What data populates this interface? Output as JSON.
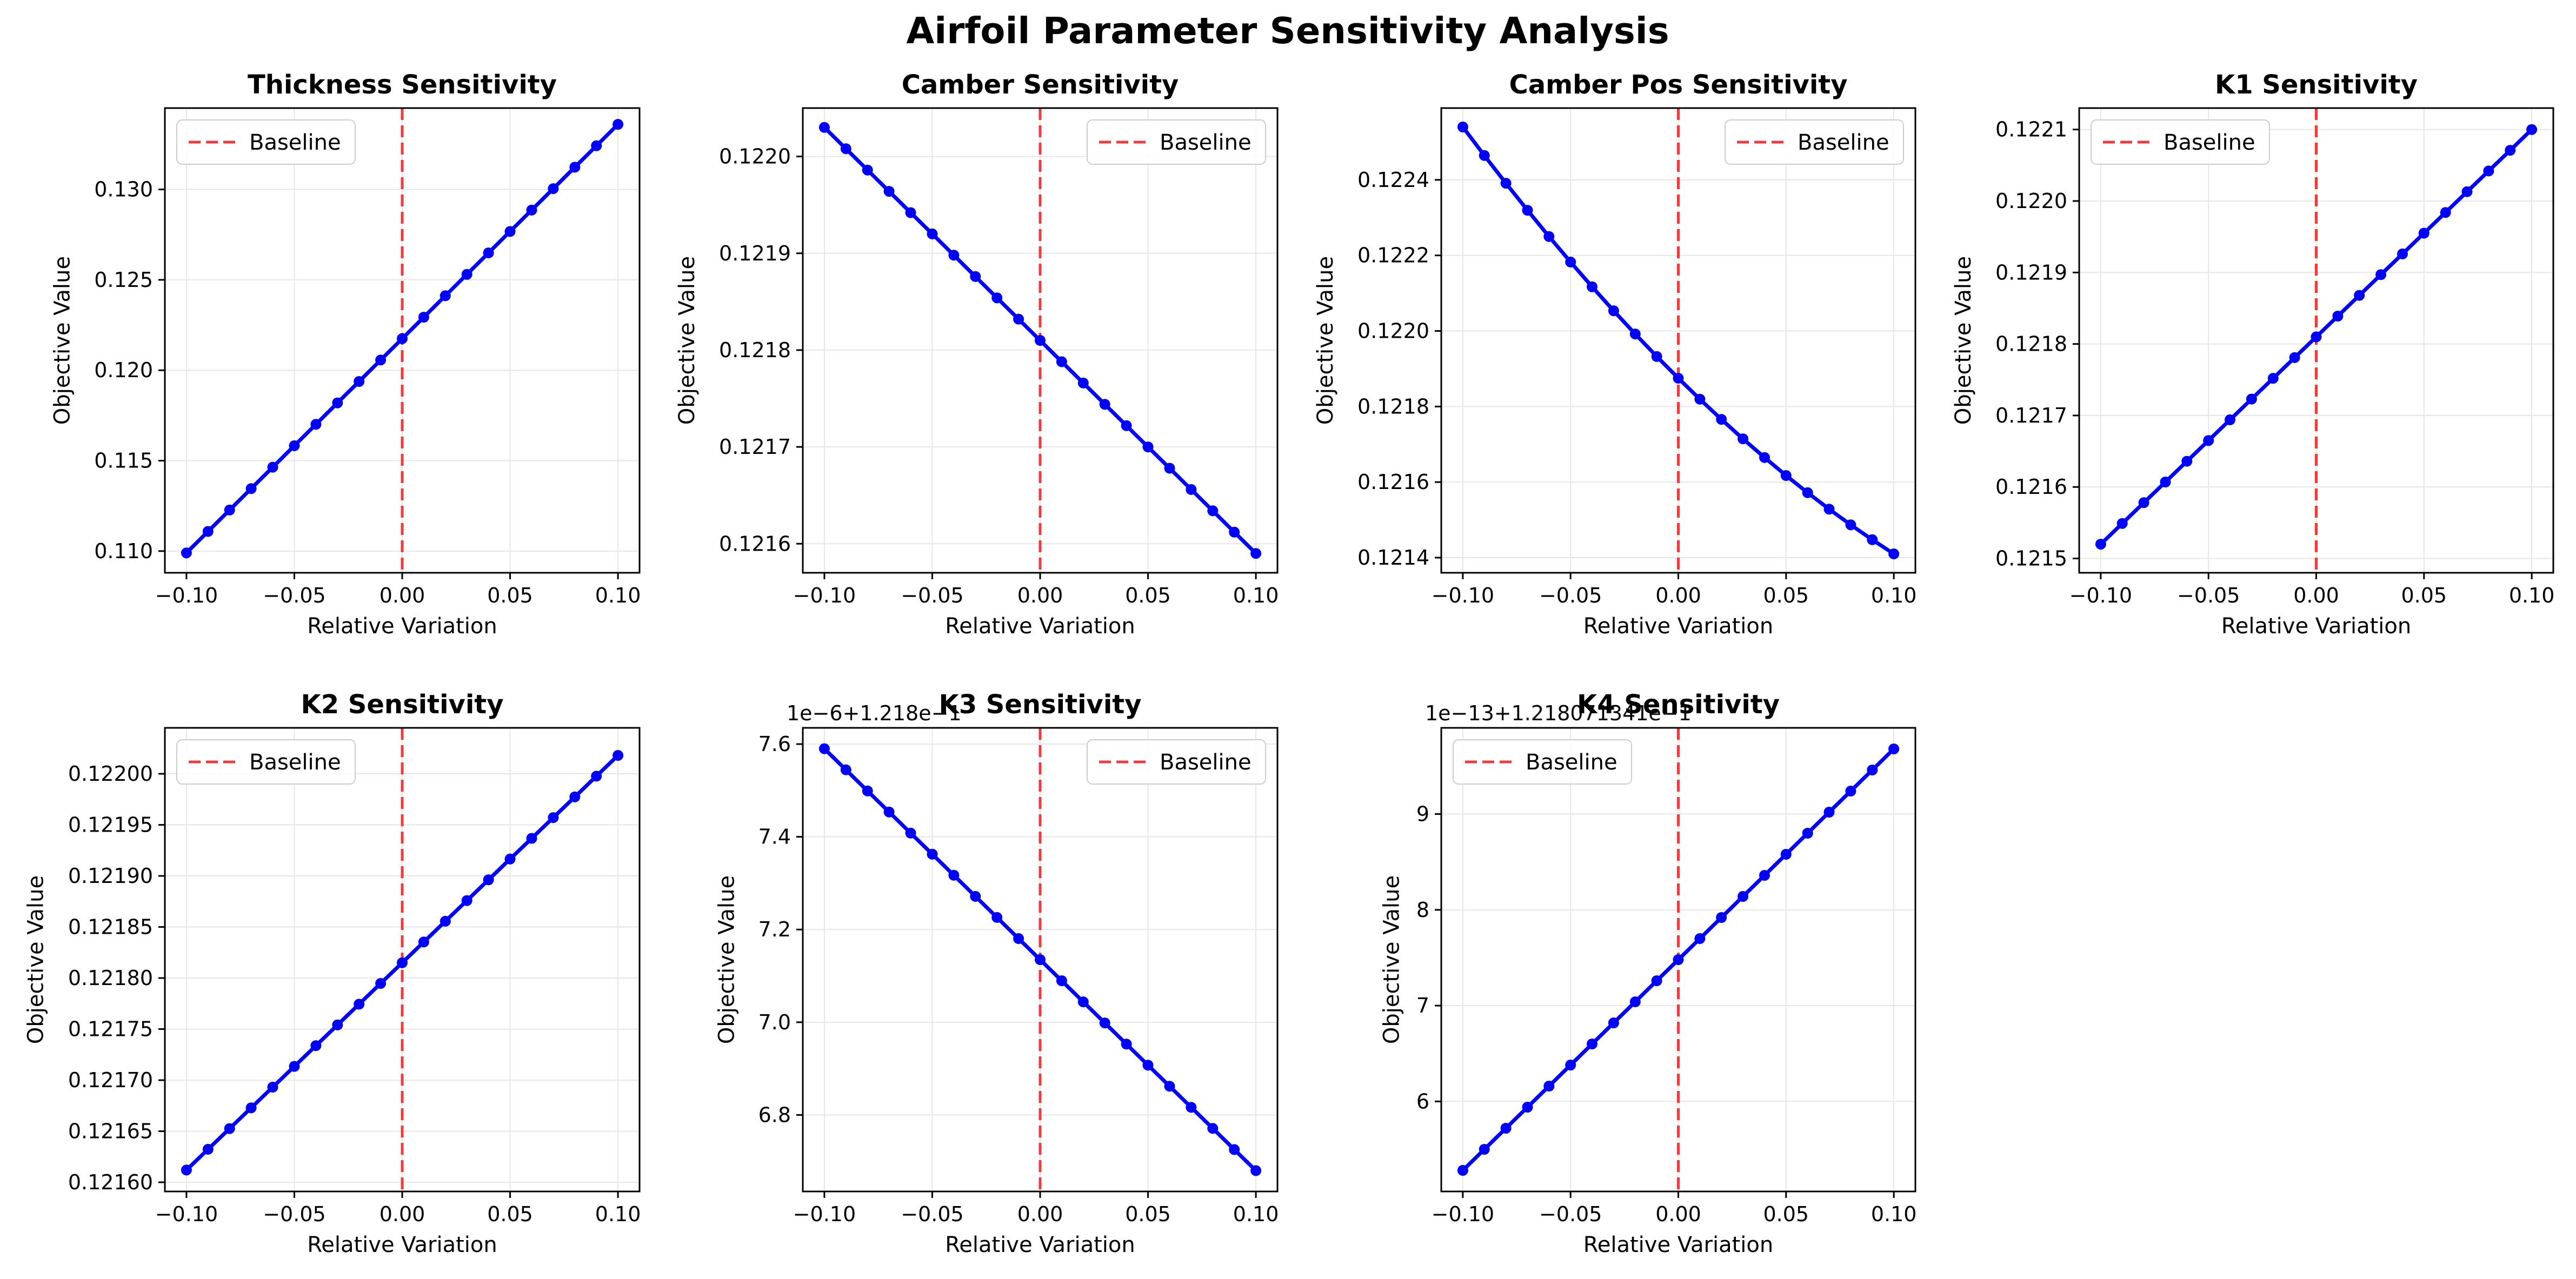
{
  "figure": {
    "title": "Airfoil Parameter Sensitivity Analysis"
  },
  "colors": {
    "series": "#0000ff",
    "baseline": "#ef3b3b",
    "grid": "#e6e6e6",
    "axis": "#000000"
  },
  "chart_data": [
    {
      "type": "line",
      "title": "Thickness Sensitivity",
      "xlabel": "Relative Variation",
      "ylabel": "Objective Value",
      "xlim": [
        -0.11,
        0.11
      ],
      "ylim": [
        0.1088,
        0.1345
      ],
      "xticks": [
        -0.1,
        -0.05,
        0.0,
        0.05,
        0.1
      ],
      "xtick_labels": [
        "−0.10",
        "−0.05",
        "0.00",
        "0.05",
        "0.10"
      ],
      "yticks": [
        0.11,
        0.115,
        0.12,
        0.125,
        0.13
      ],
      "ytick_labels": [
        "0.110",
        "0.115",
        "0.120",
        "0.125",
        "0.130"
      ],
      "offset_text": "",
      "legend": {
        "label": "Baseline",
        "position": "upper left"
      },
      "baseline_x": 0.0,
      "grid": true,
      "x_start": -0.1,
      "x_end": 0.1,
      "n_points": 21,
      "y_start": 0.1099,
      "y_end": 0.1336,
      "curvature": 0
    },
    {
      "type": "line",
      "title": "Camber Sensitivity",
      "xlabel": "Relative Variation",
      "ylabel": "Objective Value",
      "xlim": [
        -0.11,
        0.11
      ],
      "ylim": [
        0.12157,
        0.12205
      ],
      "xticks": [
        -0.1,
        -0.05,
        0.0,
        0.05,
        0.1
      ],
      "xtick_labels": [
        "−0.10",
        "−0.05",
        "0.00",
        "0.05",
        "0.10"
      ],
      "yticks": [
        0.1216,
        0.1217,
        0.1218,
        0.1219,
        0.122
      ],
      "ytick_labels": [
        "0.1216",
        "0.1217",
        "0.1218",
        "0.1219",
        "0.1220"
      ],
      "offset_text": "",
      "legend": {
        "label": "Baseline",
        "position": "upper right"
      },
      "baseline_x": 0.0,
      "grid": true,
      "x_start": -0.1,
      "x_end": 0.1,
      "n_points": 21,
      "y_start": 0.12203,
      "y_end": 0.12159,
      "curvature": 0
    },
    {
      "type": "line",
      "title": "Camber Pos Sensitivity",
      "xlabel": "Relative Variation",
      "ylabel": "Objective Value",
      "xlim": [
        -0.11,
        0.11
      ],
      "ylim": [
        0.12136,
        0.12259
      ],
      "xticks": [
        -0.1,
        -0.05,
        0.0,
        0.05,
        0.1
      ],
      "xtick_labels": [
        "−0.10",
        "−0.05",
        "0.00",
        "0.05",
        "0.10"
      ],
      "yticks": [
        0.1214,
        0.1216,
        0.1218,
        0.122,
        0.1222,
        0.1224
      ],
      "ytick_labels": [
        "0.1214",
        "0.1216",
        "0.1218",
        "0.1220",
        "0.1222",
        "0.1224"
      ],
      "offset_text": "",
      "legend": {
        "label": "Baseline",
        "position": "upper right"
      },
      "baseline_x": 0.0,
      "grid": true,
      "x_start": -0.1,
      "x_end": 0.1,
      "n_points": 21,
      "y_start": 0.12254,
      "y_end": 0.12141,
      "curvature": 0.0001
    },
    {
      "type": "line",
      "title": "K1 Sensitivity",
      "xlabel": "Relative Variation",
      "ylabel": "Objective Value",
      "xlim": [
        -0.11,
        0.11
      ],
      "ylim": [
        0.12148,
        0.12213
      ],
      "xticks": [
        -0.1,
        -0.05,
        0.0,
        0.05,
        0.1
      ],
      "xtick_labels": [
        "−0.10",
        "−0.05",
        "0.00",
        "0.05",
        "0.10"
      ],
      "yticks": [
        0.1215,
        0.1216,
        0.1217,
        0.1218,
        0.1219,
        0.122,
        0.1221
      ],
      "ytick_labels": [
        "0.1215",
        "0.1216",
        "0.1217",
        "0.1218",
        "0.1219",
        "0.1220",
        "0.1221"
      ],
      "offset_text": "",
      "legend": {
        "label": "Baseline",
        "position": "upper left"
      },
      "baseline_x": 0.0,
      "grid": true,
      "x_start": -0.1,
      "x_end": 0.1,
      "n_points": 21,
      "y_start": 0.12152,
      "y_end": 0.1221,
      "curvature": 0
    },
    {
      "type": "line",
      "title": "K2 Sensitivity",
      "xlabel": "Relative Variation",
      "ylabel": "Objective Value",
      "xlim": [
        -0.11,
        0.11
      ],
      "ylim": [
        0.121591,
        0.122045
      ],
      "xticks": [
        -0.1,
        -0.05,
        0.0,
        0.05,
        0.1
      ],
      "xtick_labels": [
        "−0.10",
        "−0.05",
        "0.00",
        "0.05",
        "0.10"
      ],
      "yticks": [
        0.1216,
        0.12165,
        0.1217,
        0.12175,
        0.1218,
        0.12185,
        0.1219,
        0.12195,
        0.122
      ],
      "ytick_labels": [
        "0.12160",
        "0.12165",
        "0.12170",
        "0.12175",
        "0.12180",
        "0.12185",
        "0.12190",
        "0.12195",
        "0.12200"
      ],
      "offset_text": "",
      "legend": {
        "label": "Baseline",
        "position": "upper left"
      },
      "baseline_x": 0.0,
      "grid": true,
      "x_start": -0.1,
      "x_end": 0.1,
      "n_points": 21,
      "y_start": 0.121612,
      "y_end": 0.122018,
      "curvature": 0
    },
    {
      "type": "line",
      "title": "K3 Sensitivity",
      "xlabel": "Relative Variation",
      "ylabel": "Objective Value",
      "xlim": [
        -0.11,
        0.11
      ],
      "ylim": [
        6.635,
        7.635
      ],
      "xticks": [
        -0.1,
        -0.05,
        0.0,
        0.05,
        0.1
      ],
      "xtick_labels": [
        "−0.10",
        "−0.05",
        "0.00",
        "0.05",
        "0.10"
      ],
      "yticks": [
        6.8,
        7.0,
        7.2,
        7.4,
        7.6
      ],
      "ytick_labels": [
        "6.8",
        "7.0",
        "7.2",
        "7.4",
        "7.6"
      ],
      "offset_text": "1e−6+1.218e−1",
      "legend": {
        "label": "Baseline",
        "position": "upper right"
      },
      "baseline_x": 0.0,
      "grid": true,
      "x_start": -0.1,
      "x_end": 0.1,
      "n_points": 21,
      "y_start": 7.59,
      "y_end": 6.68,
      "curvature": 0
    },
    {
      "type": "line",
      "title": "K4 Sensitivity",
      "xlabel": "Relative Variation",
      "ylabel": "Objective Value",
      "xlim": [
        -0.11,
        0.11
      ],
      "ylim": [
        5.06,
        9.9
      ],
      "xticks": [
        -0.1,
        -0.05,
        0.0,
        0.05,
        0.1
      ],
      "xtick_labels": [
        "−0.10",
        "−0.05",
        "0.00",
        "0.05",
        "0.10"
      ],
      "yticks": [
        6,
        7,
        8,
        9
      ],
      "ytick_labels": [
        "6",
        "7",
        "8",
        "9"
      ],
      "offset_text": "1e−13+1.218071341e−1",
      "legend": {
        "label": "Baseline",
        "position": "upper left"
      },
      "baseline_x": 0.0,
      "grid": true,
      "x_start": -0.1,
      "x_end": 0.1,
      "n_points": 21,
      "y_start": 5.28,
      "y_end": 9.68,
      "curvature": 0
    }
  ]
}
